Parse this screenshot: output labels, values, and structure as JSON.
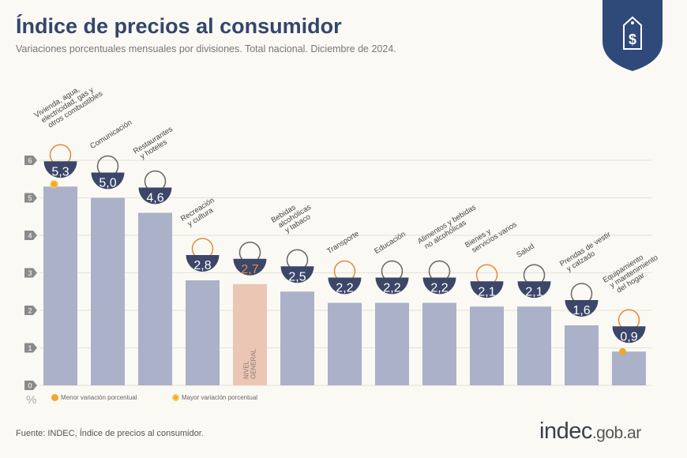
{
  "header": {
    "title": "Índice de precios al consumidor",
    "subtitle": "Variaciones porcentuales mensuales por divisiones. Total nacional. Diciembre de 2024."
  },
  "footer": {
    "source": "Fuente: INDEC, Índice de precios al consumidor.",
    "brand_main": "indec",
    "brand_domain": ".gob.ar"
  },
  "legend": {
    "min_label": "Menor variación porcentual",
    "max_label": "Mayor variación porcentual",
    "unit": "%"
  },
  "colors": {
    "bar": "#aab1c8",
    "general_bar": "#ebc6b5",
    "badge": "#3b4669",
    "accent": "#e58a3a",
    "marker": "#eea82a"
  },
  "chart_data": {
    "type": "bar",
    "ylim": [
      0,
      6
    ],
    "yticks": [
      "0",
      "1",
      "2",
      "3",
      "4",
      "5",
      "6"
    ],
    "grid": true,
    "categories": [
      {
        "label": [
          "Vivienda, agua,",
          "electricidad, gas y",
          "otros combustibles"
        ],
        "icon": "lightbulb-icon"
      },
      {
        "label": [
          "Comunicación"
        ],
        "icon": "phone-icon"
      },
      {
        "label": [
          "Restaurantes",
          "y hoteles"
        ],
        "icon": "plate-cutlery-icon"
      },
      {
        "label": [
          "Recreación",
          "y cultura"
        ],
        "icon": "umbrella-icon"
      },
      {
        "label": [],
        "icon": "basket-icon",
        "bar_text": [
          "NIVEL",
          "GENERAL"
        ]
      },
      {
        "label": [
          "Bebidas",
          "alcohólicas",
          "y tabaco"
        ],
        "icon": "glass-icon"
      },
      {
        "label": [
          "Transporte"
        ],
        "icon": "car-icon"
      },
      {
        "label": [
          "Educación"
        ],
        "icon": "notebook-icon"
      },
      {
        "label": [
          "Alimentos y bebidas",
          "no alcohólicas"
        ],
        "icon": "food-icon"
      },
      {
        "label": [
          "Bienes y",
          "servicios varios"
        ],
        "icon": "comb-scissors-icon"
      },
      {
        "label": [
          "Salud"
        ],
        "icon": "medical-cross-icon"
      },
      {
        "label": [
          "Prendas de vestir",
          "y calzado"
        ],
        "icon": "shirt-icon"
      },
      {
        "label": [
          "Equipamiento",
          "y mantenimiento",
          "del hogar"
        ],
        "icon": "appliance-icon"
      }
    ],
    "values": [
      5.3,
      5.0,
      4.6,
      2.8,
      2.7,
      2.5,
      2.2,
      2.2,
      2.2,
      2.1,
      2.1,
      1.6,
      0.9
    ],
    "value_labels": [
      "5,3",
      "5,0",
      "4,6",
      "2,8",
      "2,7",
      "2,5",
      "2,2",
      "2,2",
      "2,2",
      "2,1",
      "2,1",
      "1,6",
      "0,9"
    ],
    "max_index": 0,
    "min_index": 12,
    "general_index": 4
  }
}
